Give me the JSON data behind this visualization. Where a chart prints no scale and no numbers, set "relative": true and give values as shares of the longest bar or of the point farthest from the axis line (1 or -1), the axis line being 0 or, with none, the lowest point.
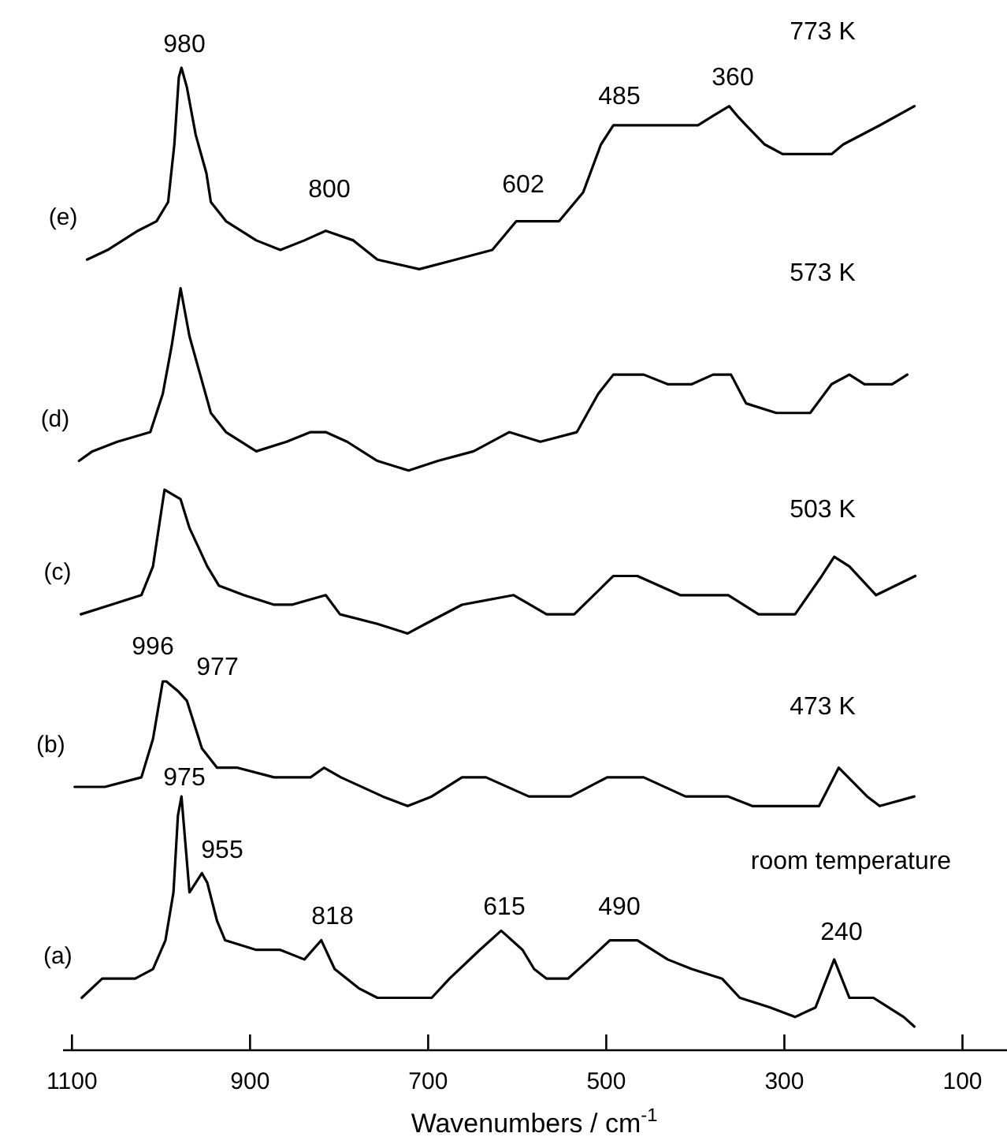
{
  "chart_data": {
    "type": "line",
    "relative": true,
    "xlabel": "Wavenumbers / cm$^{-1}$",
    "xlim": [
      1110,
      50
    ],
    "xticks": [
      1100,
      900,
      700,
      500,
      300,
      100
    ],
    "line_style": "solid",
    "series": [
      {
        "name": "(e)",
        "color": "#000000",
        "x": [
          1083,
          1060,
          1026,
          1005,
          992,
          985,
          980,
          977,
          971,
          961,
          949,
          944,
          927,
          893,
          866,
          839,
          815,
          784,
          757,
          710,
          669,
          628,
          601,
          574,
          553,
          526,
          506,
          492,
          472,
          431,
          397,
          380,
          362,
          353,
          343,
          322,
          302,
          275,
          247,
          234,
          193,
          154
        ],
        "values": [
          0.8,
          0.81,
          0.83,
          0.84,
          0.86,
          0.92,
          0.99,
          1.0,
          0.98,
          0.93,
          0.89,
          0.86,
          0.84,
          0.82,
          0.81,
          0.82,
          0.83,
          0.82,
          0.8,
          0.79,
          0.8,
          0.81,
          0.84,
          0.84,
          0.84,
          0.87,
          0.92,
          0.94,
          0.94,
          0.94,
          0.94,
          0.95,
          0.96,
          0.95,
          0.94,
          0.92,
          0.91,
          0.91,
          0.91,
          0.92,
          0.94,
          0.96
        ]
      },
      {
        "name": "(d)",
        "color": "#000000",
        "x": [
          1092,
          1077,
          1049,
          1012,
          998,
          988,
          978,
          968,
          956,
          944,
          927,
          893,
          859,
          832,
          815,
          791,
          757,
          722,
          689,
          649,
          609,
          574,
          533,
          509,
          492,
          458,
          431,
          404,
          380,
          360,
          343,
          309,
          271,
          247,
          227,
          210,
          179,
          162
        ],
        "values": [
          0.59,
          0.6,
          0.61,
          0.62,
          0.66,
          0.71,
          0.77,
          0.72,
          0.68,
          0.64,
          0.62,
          0.6,
          0.61,
          0.62,
          0.62,
          0.61,
          0.59,
          0.58,
          0.59,
          0.6,
          0.62,
          0.61,
          0.62,
          0.66,
          0.68,
          0.68,
          0.67,
          0.67,
          0.68,
          0.68,
          0.65,
          0.64,
          0.64,
          0.67,
          0.68,
          0.67,
          0.67,
          0.68
        ]
      },
      {
        "name": "(c)",
        "color": "#000000",
        "x": [
          1090,
          1056,
          1022,
          1009,
          996,
          978,
          968,
          948,
          935,
          907,
          873,
          853,
          815,
          799,
          757,
          723,
          703,
          662,
          604,
          567,
          536,
          492,
          465,
          417,
          363,
          329,
          288,
          258,
          244,
          227,
          197,
          153
        ],
        "values": [
          0.43,
          0.44,
          0.45,
          0.48,
          0.56,
          0.55,
          0.52,
          0.48,
          0.46,
          0.45,
          0.44,
          0.44,
          0.45,
          0.43,
          0.42,
          0.41,
          0.42,
          0.44,
          0.45,
          0.43,
          0.43,
          0.47,
          0.47,
          0.45,
          0.45,
          0.43,
          0.43,
          0.47,
          0.49,
          0.48,
          0.45,
          0.47
        ]
      },
      {
        "name": "(b)",
        "color": "#000000",
        "x": [
          1097,
          1063,
          1022,
          1009,
          998,
          994,
          981,
          971,
          954,
          937,
          914,
          873,
          832,
          817,
          798,
          751,
          723,
          696,
          662,
          635,
          587,
          553,
          540,
          499,
          458,
          411,
          363,
          336,
          302,
          261,
          239,
          207,
          193,
          154
        ],
        "values": [
          0.25,
          0.25,
          0.26,
          0.3,
          0.36,
          0.36,
          0.35,
          0.34,
          0.29,
          0.27,
          0.27,
          0.26,
          0.26,
          0.27,
          0.26,
          0.24,
          0.23,
          0.24,
          0.26,
          0.26,
          0.24,
          0.24,
          0.24,
          0.26,
          0.26,
          0.24,
          0.24,
          0.23,
          0.23,
          0.23,
          0.27,
          0.24,
          0.23,
          0.24
        ]
      },
      {
        "name": "(a)",
        "color": "#000000",
        "x": [
          1089,
          1066,
          1029,
          1009,
          995,
          986,
          981,
          977,
          968,
          954,
          948,
          937,
          928,
          893,
          866,
          839,
          820,
          805,
          778,
          757,
          730,
          696,
          676,
          642,
          618,
          594,
          581,
          567,
          543,
          519,
          496,
          465,
          431,
          404,
          370,
          350,
          316,
          288,
          265,
          244,
          227,
          200,
          166,
          154
        ],
        "values": [
          0.03,
          0.05,
          0.05,
          0.06,
          0.09,
          0.14,
          0.22,
          0.24,
          0.14,
          0.16,
          0.15,
          0.11,
          0.09,
          0.08,
          0.08,
          0.07,
          0.09,
          0.06,
          0.04,
          0.03,
          0.03,
          0.03,
          0.05,
          0.08,
          0.1,
          0.08,
          0.06,
          0.05,
          0.05,
          0.07,
          0.09,
          0.09,
          0.07,
          0.06,
          0.05,
          0.03,
          0.02,
          0.01,
          0.02,
          0.07,
          0.03,
          0.03,
          0.01,
          0.0
        ]
      }
    ],
    "annotations": [
      "980",
      "800",
      "602",
      "485",
      "360",
      "773 K",
      "573 K",
      "503 K",
      "996",
      "977",
      "473 K",
      "975",
      "955",
      "room temperature",
      "818",
      "615",
      "490",
      "240"
    ]
  }
}
